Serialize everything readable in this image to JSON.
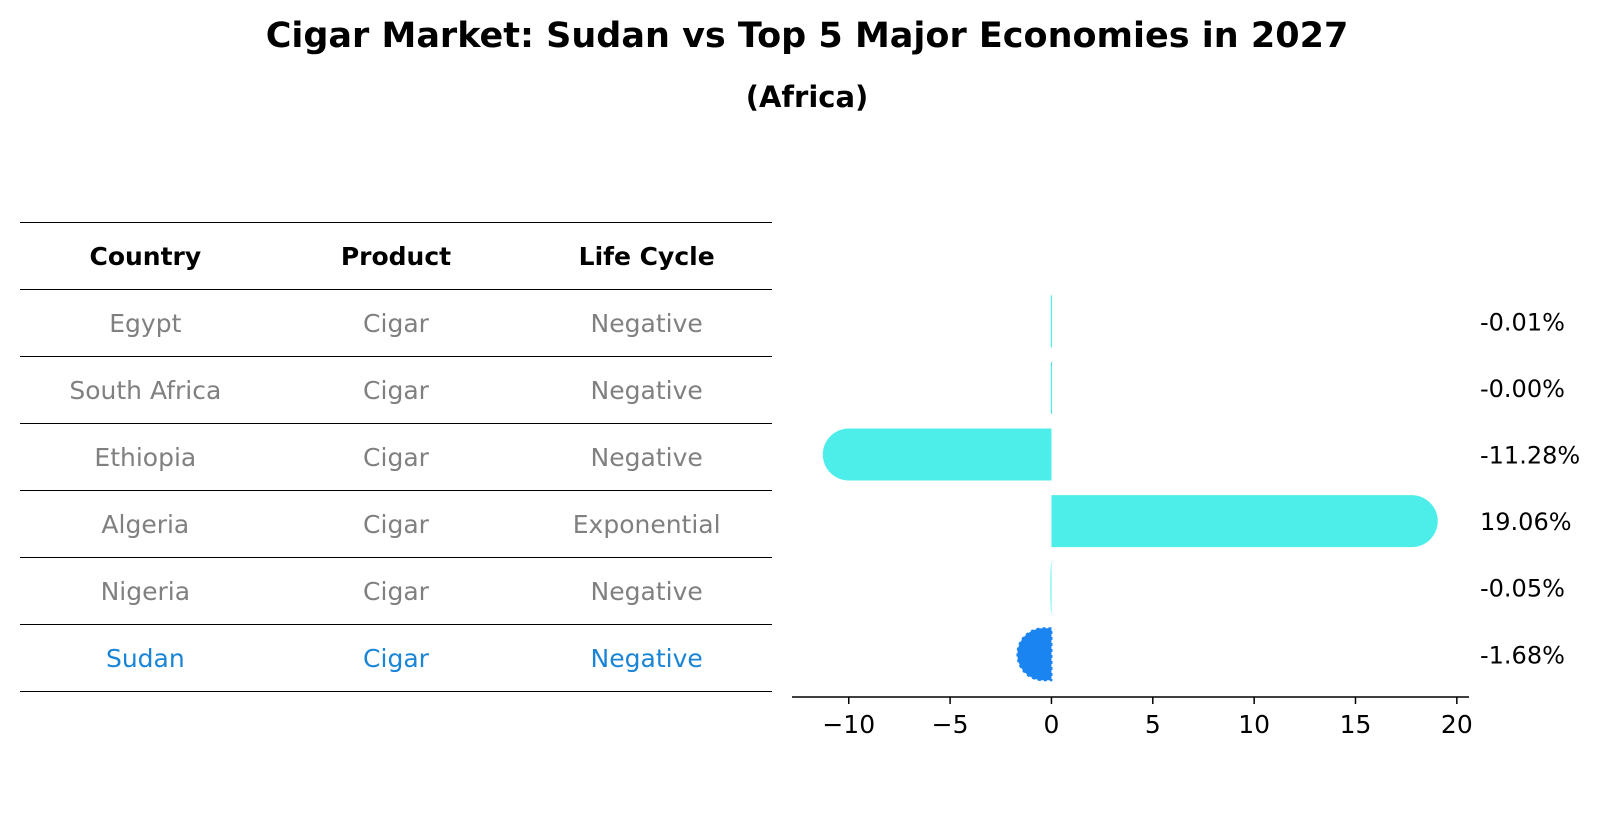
{
  "title": "Cigar Market: Sudan vs Top 5 Major Economies in 2027",
  "subtitle": "(Africa)",
  "table": {
    "headers": [
      "Country",
      "Product",
      "Life Cycle"
    ],
    "rows": [
      {
        "country": "Egypt",
        "product": "Cigar",
        "life_cycle": "Negative"
      },
      {
        "country": "South Africa",
        "product": "Cigar",
        "life_cycle": "Negative"
      },
      {
        "country": "Ethiopia",
        "product": "Cigar",
        "life_cycle": "Negative"
      },
      {
        "country": "Algeria",
        "product": "Cigar",
        "life_cycle": "Exponential"
      },
      {
        "country": "Nigeria",
        "product": "Cigar",
        "life_cycle": "Negative"
      },
      {
        "country": "Sudan",
        "product": "Cigar",
        "life_cycle": "Negative",
        "highlight": true
      }
    ]
  },
  "chart_data": {
    "type": "bar",
    "orientation": "horizontal",
    "categories": [
      "Egypt",
      "South Africa",
      "Ethiopia",
      "Algeria",
      "Nigeria",
      "Sudan"
    ],
    "values": [
      -0.01,
      -0.0,
      -11.28,
      19.06,
      -0.05,
      -1.68
    ],
    "value_labels": [
      "-0.01%",
      "-0.00%",
      "-11.28%",
      "19.06%",
      "-0.05%",
      "-1.68%"
    ],
    "xlim": [
      -12.8,
      20.6
    ],
    "xticks": [
      -10,
      -5,
      0,
      5,
      10,
      15,
      20
    ],
    "xtick_labels": [
      "−10",
      "−5",
      "0",
      "5",
      "10",
      "15",
      "20"
    ],
    "bar_colors": [
      "#4deee9",
      "#4deee9",
      "#4deee9",
      "#4deee9",
      "#4deee9",
      "#1a85f0"
    ],
    "highlight_category": "Sudan",
    "grid": false
  }
}
